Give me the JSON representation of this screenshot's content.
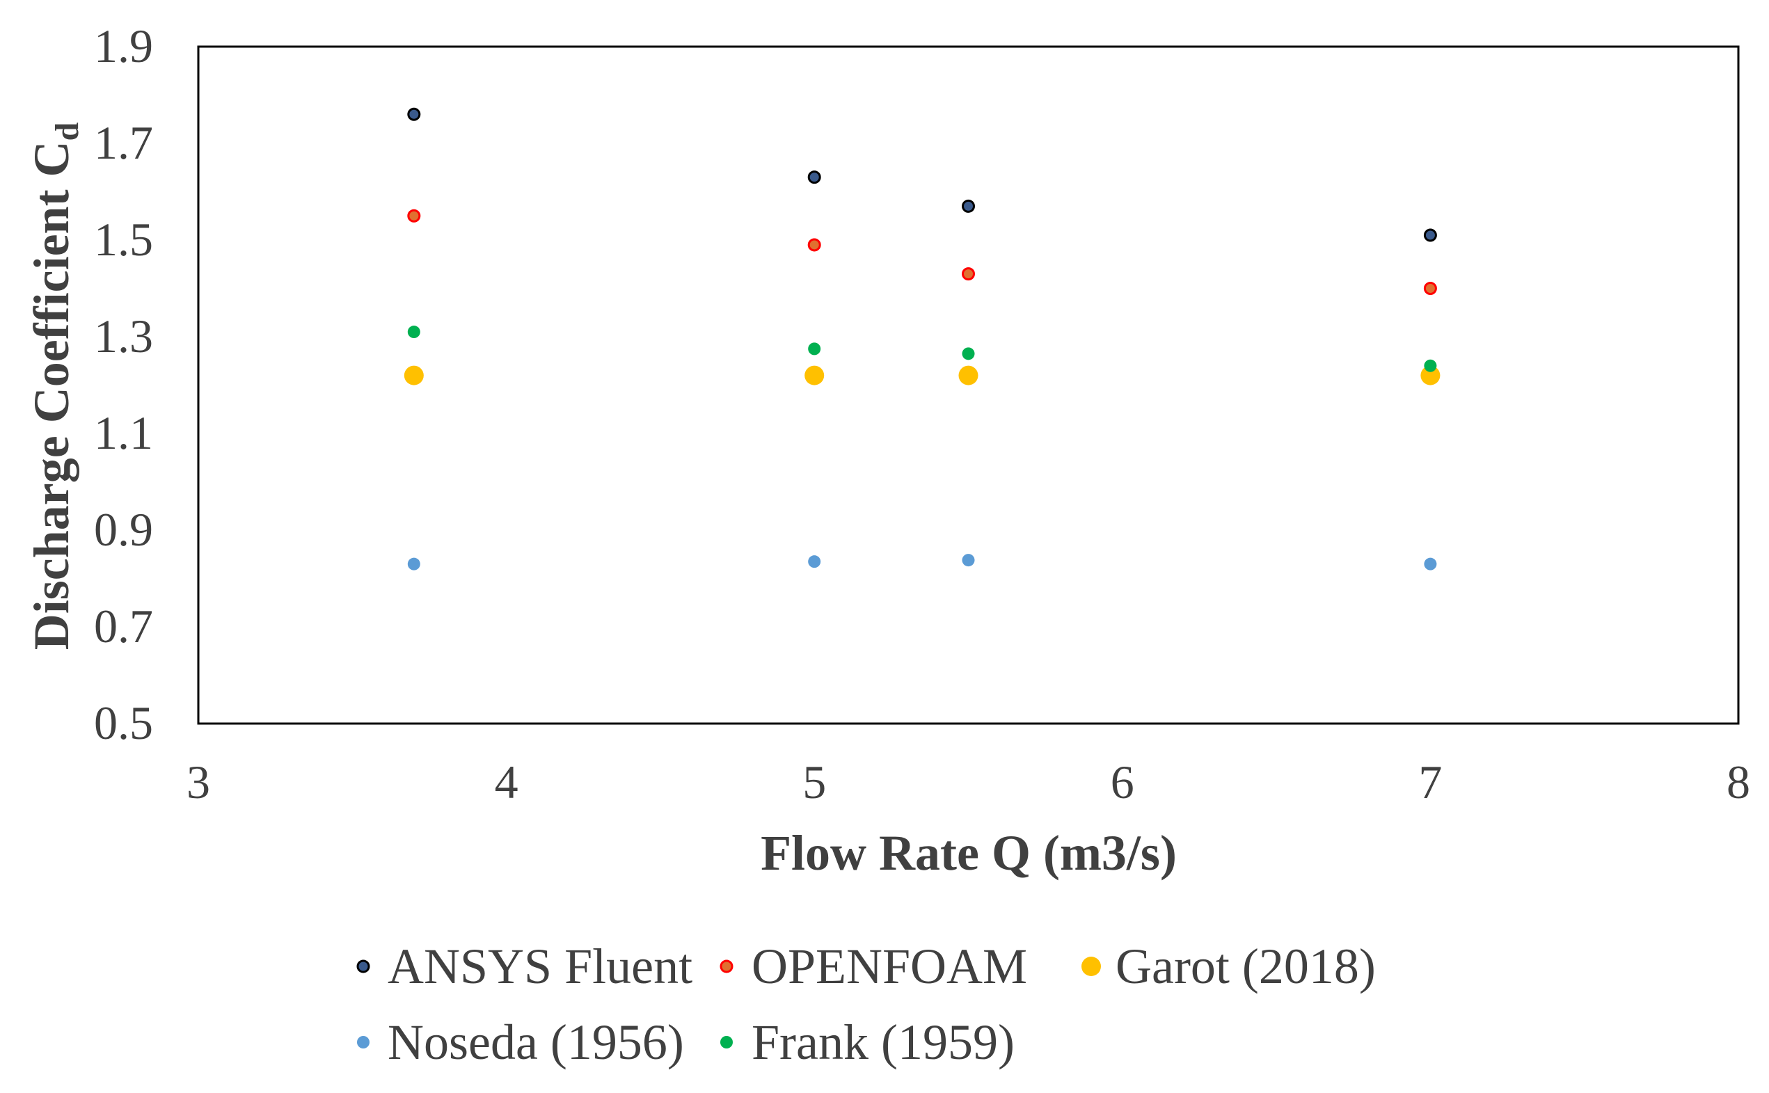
{
  "chart_data": {
    "type": "scatter",
    "title": "",
    "xlabel": "Flow Rate Q (m3/s)",
    "ylabel": {
      "main": "Discharge Coefficient C",
      "subscript": "d"
    },
    "xlim": [
      3,
      8
    ],
    "ylim": [
      0.5,
      1.9
    ],
    "xticks": [
      3,
      4,
      5,
      6,
      7,
      8
    ],
    "yticks": [
      0.5,
      0.7,
      0.9,
      1.1,
      1.3,
      1.5,
      1.7,
      1.9
    ],
    "xtick_labels": [
      "3",
      "4",
      "5",
      "6",
      "7",
      "8"
    ],
    "ytick_labels": [
      "0.5",
      "0.7",
      "0.9",
      "1.1",
      "1.3",
      "1.5",
      "1.7",
      "1.9"
    ],
    "grid": false,
    "legend_position": "bottom",
    "series": [
      {
        "name": "ANSYS Fluent",
        "key": "ansys-fluent",
        "marker": "circle-outlined",
        "fill": "#3a5a8c",
        "stroke": "#000000",
        "x": [
          3.7,
          5.0,
          5.5,
          7.0
        ],
        "y": [
          1.76,
          1.63,
          1.57,
          1.51
        ]
      },
      {
        "name": "OPENFOAM",
        "key": "openfoam",
        "marker": "circle-outlined",
        "fill": "#e07030",
        "stroke": "#ff0000",
        "x": [
          3.7,
          5.0,
          5.5,
          7.0
        ],
        "y": [
          1.55,
          1.49,
          1.43,
          1.4
        ]
      },
      {
        "name": "Garot (2018)",
        "key": "garot-2018",
        "marker": "circle-large",
        "fill": "#ffc000",
        "stroke": "none",
        "x": [
          3.7,
          5.0,
          5.5,
          7.0
        ],
        "y": [
          1.22,
          1.22,
          1.22,
          1.22
        ]
      },
      {
        "name": "Noseda (1956)",
        "key": "noseda-1956",
        "marker": "circle",
        "fill": "#5b9bd5",
        "stroke": "none",
        "x": [
          3.7,
          5.0,
          5.5,
          7.0
        ],
        "y": [
          0.83,
          0.835,
          0.838,
          0.83
        ]
      },
      {
        "name": "Frank (1959)",
        "key": "frank-1959",
        "marker": "circle",
        "fill": "#00b050",
        "stroke": "none",
        "x": [
          3.7,
          5.0,
          5.5,
          7.0
        ],
        "y": [
          1.31,
          1.275,
          1.265,
          1.24
        ]
      }
    ]
  }
}
